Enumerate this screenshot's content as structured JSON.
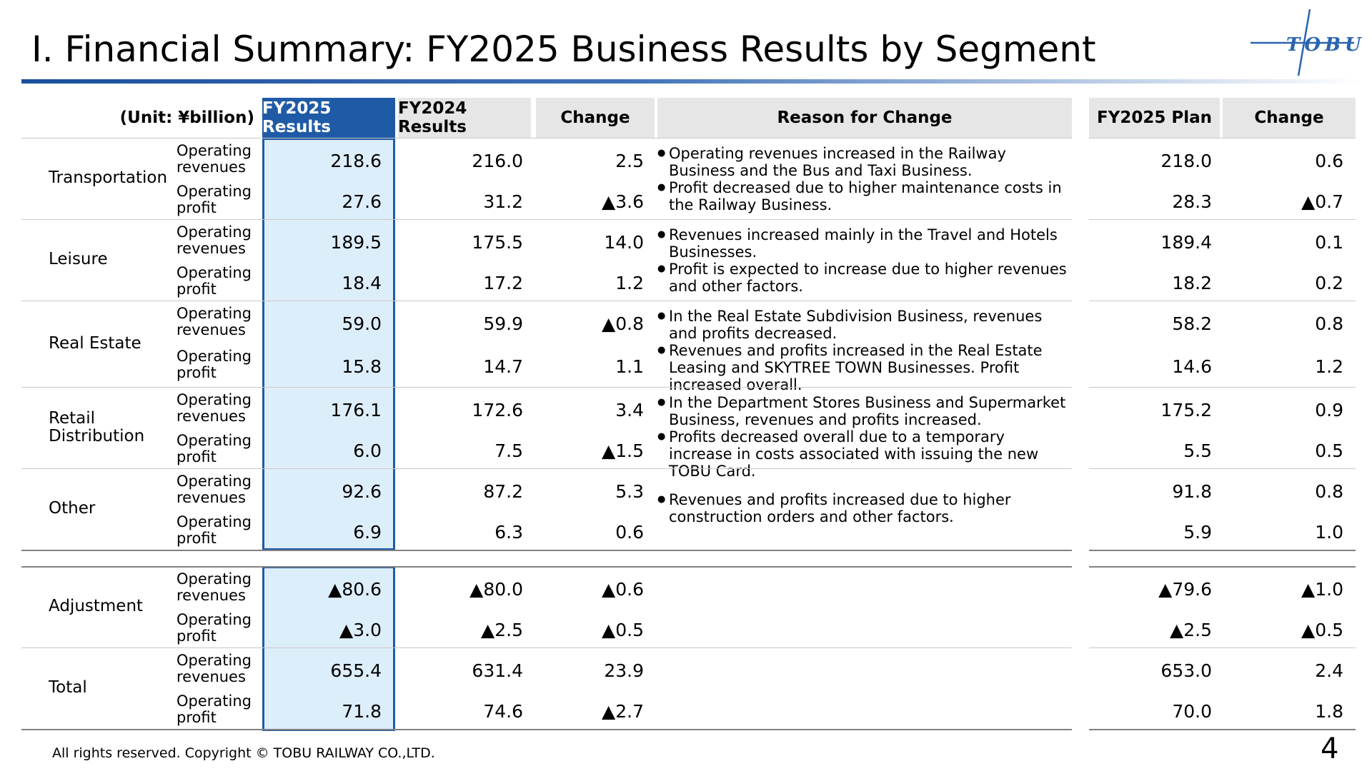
{
  "title": "I. Financial Summary: FY2025 Business Results by Segment",
  "logo_text": "TOBU",
  "header": {
    "unit": "(Unit: ¥billion)",
    "fy2025_results": "FY2025 Results",
    "fy2024_results": "FY2024 Results",
    "change": "Change",
    "reason": "Reason for Change",
    "fy2025_plan": "FY2025 Plan",
    "plan_change": "Change"
  },
  "segments": [
    {
      "name": "Transportation",
      "rows": [
        {
          "item": "Operating revenues",
          "fy2025": "218.6",
          "fy2024": "216.0",
          "change": "2.5",
          "plan": "218.0",
          "plan_change": "0.6"
        },
        {
          "item": "Operating profit",
          "fy2025": "27.6",
          "fy2024": "31.2",
          "change": "▲3.6",
          "plan": "28.3",
          "plan_change": "▲0.7"
        }
      ],
      "reasons": [
        "Operating revenues increased in the Railway Business and the Bus and Taxi Business.",
        "Profit decreased due to higher maintenance costs in the Railway Business."
      ]
    },
    {
      "name": "Leisure",
      "rows": [
        {
          "item": "Operating revenues",
          "fy2025": "189.5",
          "fy2024": "175.5",
          "change": "14.0",
          "plan": "189.4",
          "plan_change": "0.1"
        },
        {
          "item": "Operating profit",
          "fy2025": "18.4",
          "fy2024": "17.2",
          "change": "1.2",
          "plan": "18.2",
          "plan_change": "0.2"
        }
      ],
      "reasons": [
        "Revenues increased mainly in the Travel and Hotels Businesses.",
        "Profit is expected to increase due to higher revenues and other factors."
      ]
    },
    {
      "name": "Real Estate",
      "rows": [
        {
          "item": "Operating revenues",
          "fy2025": "59.0",
          "fy2024": "59.9",
          "change": "▲0.8",
          "plan": "58.2",
          "plan_change": "0.8"
        },
        {
          "item": "Operating profit",
          "fy2025": "15.8",
          "fy2024": "14.7",
          "change": "1.1",
          "plan": "14.6",
          "plan_change": "1.2"
        }
      ],
      "reasons": [
        "In the Real Estate Subdivision Business, revenues and profits decreased.",
        "Revenues and profits increased in the Real Estate Leasing and SKYTREE TOWN Businesses. Profit increased overall."
      ]
    },
    {
      "name": "Retail Distribution",
      "rows": [
        {
          "item": "Operating revenues",
          "fy2025": "176.1",
          "fy2024": "172.6",
          "change": "3.4",
          "plan": "175.2",
          "plan_change": "0.9"
        },
        {
          "item": "Operating profit",
          "fy2025": "6.0",
          "fy2024": "7.5",
          "change": "▲1.5",
          "plan": "5.5",
          "plan_change": "0.5"
        }
      ],
      "reasons": [
        "In the Department Stores Business and Supermarket Business, revenues and profits increased.",
        "Profits decreased overall due to a temporary increase in costs associated with issuing the new TOBU Card."
      ]
    },
    {
      "name": "Other",
      "rows": [
        {
          "item": "Operating revenues",
          "fy2025": "92.6",
          "fy2024": "87.2",
          "change": "5.3",
          "plan": "91.8",
          "plan_change": "0.8"
        },
        {
          "item": "Operating profit",
          "fy2025": "6.9",
          "fy2024": "6.3",
          "change": "0.6",
          "plan": "5.9",
          "plan_change": "1.0"
        }
      ],
      "reasons": [
        "Revenues and profits increased due to higher construction orders and other factors."
      ]
    },
    {
      "name": "Adjustment",
      "rows": [
        {
          "item": "Operating revenues",
          "fy2025": "▲80.6",
          "fy2024": "▲80.0",
          "change": "▲0.6",
          "plan": "▲79.6",
          "plan_change": "▲1.0"
        },
        {
          "item": "Operating profit",
          "fy2025": "▲3.0",
          "fy2024": "▲2.5",
          "change": "▲0.5",
          "plan": "▲2.5",
          "plan_change": "▲0.5"
        }
      ],
      "reasons": []
    },
    {
      "name": "Total",
      "rows": [
        {
          "item": "Operating revenues",
          "fy2025": "655.4",
          "fy2024": "631.4",
          "change": "23.9",
          "plan": "653.0",
          "plan_change": "2.4"
        },
        {
          "item": "Operating profit",
          "fy2025": "71.8",
          "fy2024": "74.6",
          "change": "▲2.7",
          "plan": "70.0",
          "plan_change": "1.8"
        }
      ],
      "reasons": []
    }
  ],
  "footer": "All rights reserved. Copyright © TOBU RAILWAY CO.,LTD.",
  "page_number": "4",
  "colors": {
    "accent": "#1f5aa6",
    "highlight_fill": "#ddeefb",
    "header_gray": "#e6e6e6"
  }
}
